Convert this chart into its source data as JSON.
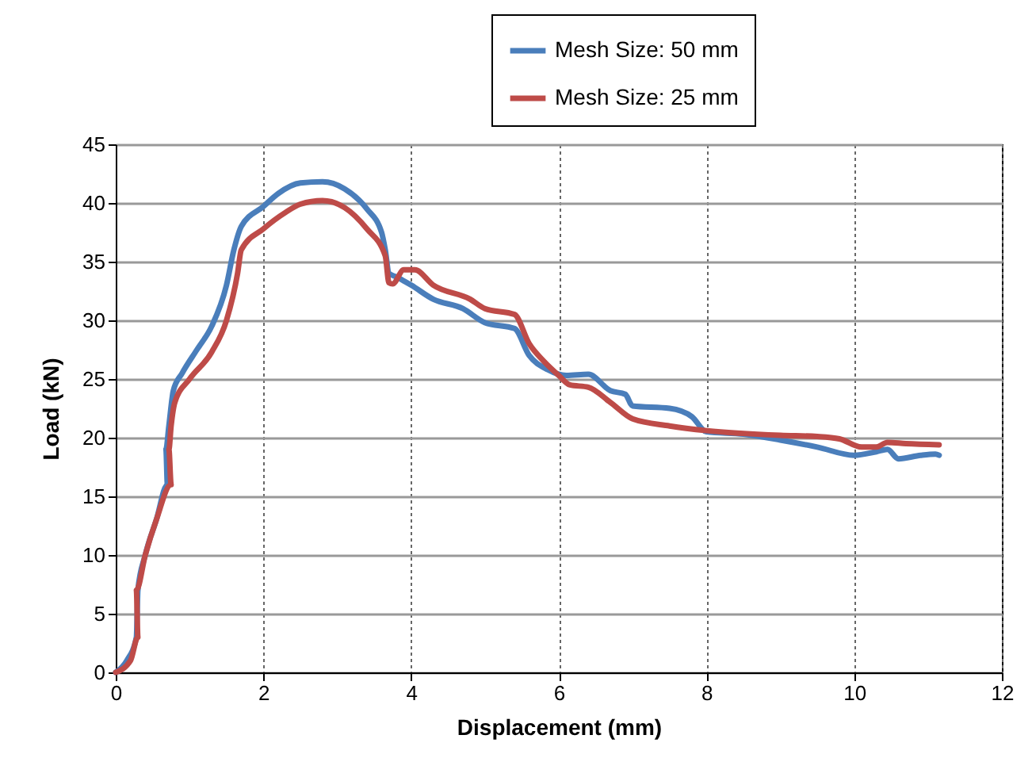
{
  "chart_data": {
    "type": "line",
    "xlabel": "Displacement (mm)",
    "ylabel": "Load (kN)",
    "xlim": [
      0,
      12
    ],
    "xticks": [
      0,
      2,
      4,
      6,
      8,
      10,
      12
    ],
    "ylim": [
      0,
      45
    ],
    "yticks": [
      0,
      5,
      10,
      15,
      20,
      25,
      30,
      35,
      40,
      45
    ],
    "grid": true,
    "legend": "top",
    "marker": "none",
    "line_style": "solid",
    "series": [
      {
        "name": "Mesh Size: 50 mm",
        "color": "#4a7ebb",
        "x": [
          0,
          0.15,
          0.28,
          0.3,
          0.4,
          0.55,
          0.7,
          0.68,
          0.72,
          0.78,
          0.9,
          1.1,
          1.3,
          1.5,
          1.6,
          1.7,
          2,
          2.2,
          2.5,
          2.8,
          3.1,
          3.4,
          3.6,
          3.65,
          3.7,
          3.8,
          4,
          4.3,
          4.7,
          5,
          5.4,
          5.6,
          5.85,
          6.1,
          6.4,
          6.7,
          6.9,
          7,
          7.5,
          7.8,
          8,
          8.5,
          9,
          9.5,
          10,
          10.3,
          10.45,
          10.6,
          10.9,
          11.1,
          11.15
        ],
        "values": [
          0,
          1,
          3,
          7,
          10,
          13,
          16,
          19,
          21,
          24,
          25.5,
          27.5,
          29.5,
          33,
          36,
          38,
          39.7,
          40.8,
          41.7,
          41.8,
          41.2,
          39.5,
          37.5,
          36,
          34,
          33.7,
          33,
          31.8,
          31,
          29.8,
          29.3,
          27,
          25.8,
          25.3,
          25.4,
          24,
          23.7,
          22.7,
          22.5,
          21.8,
          20.5,
          20.3,
          19.8,
          19.2,
          18.5,
          18.8,
          19,
          18.2,
          18.5,
          18.6,
          18.5
        ]
      },
      {
        "name": "Mesh Size: 25 mm",
        "color": "#be4b48",
        "x": [
          0,
          0.2,
          0.3,
          0.28,
          0.4,
          0.55,
          0.75,
          0.72,
          0.75,
          0.8,
          1,
          1.3,
          1.5,
          1.65,
          1.7,
          2,
          2.3,
          2.5,
          2.8,
          3.1,
          3.4,
          3.65,
          3.7,
          3.75,
          3.9,
          4.05,
          4.3,
          4.8,
          5,
          5.4,
          5.6,
          5.8,
          6,
          6.15,
          6.4,
          6.7,
          7,
          7.5,
          8,
          9,
          9.5,
          9.8,
          10.1,
          10.3,
          10.45,
          10.7,
          11.15
        ],
        "values": [
          0,
          1,
          3,
          7,
          10,
          13,
          16,
          19,
          21,
          23,
          25,
          27.3,
          30,
          34,
          36,
          37.8,
          39.2,
          39.9,
          40.2,
          39.6,
          37.8,
          35.5,
          33.2,
          33.1,
          34.3,
          34.3,
          33,
          31.8,
          31,
          30.5,
          28,
          26.5,
          25.3,
          24.5,
          24.3,
          23,
          21.6,
          21,
          20.6,
          20.2,
          20.1,
          19.9,
          19.2,
          19.2,
          19.6,
          19.5,
          19.4
        ]
      }
    ]
  }
}
